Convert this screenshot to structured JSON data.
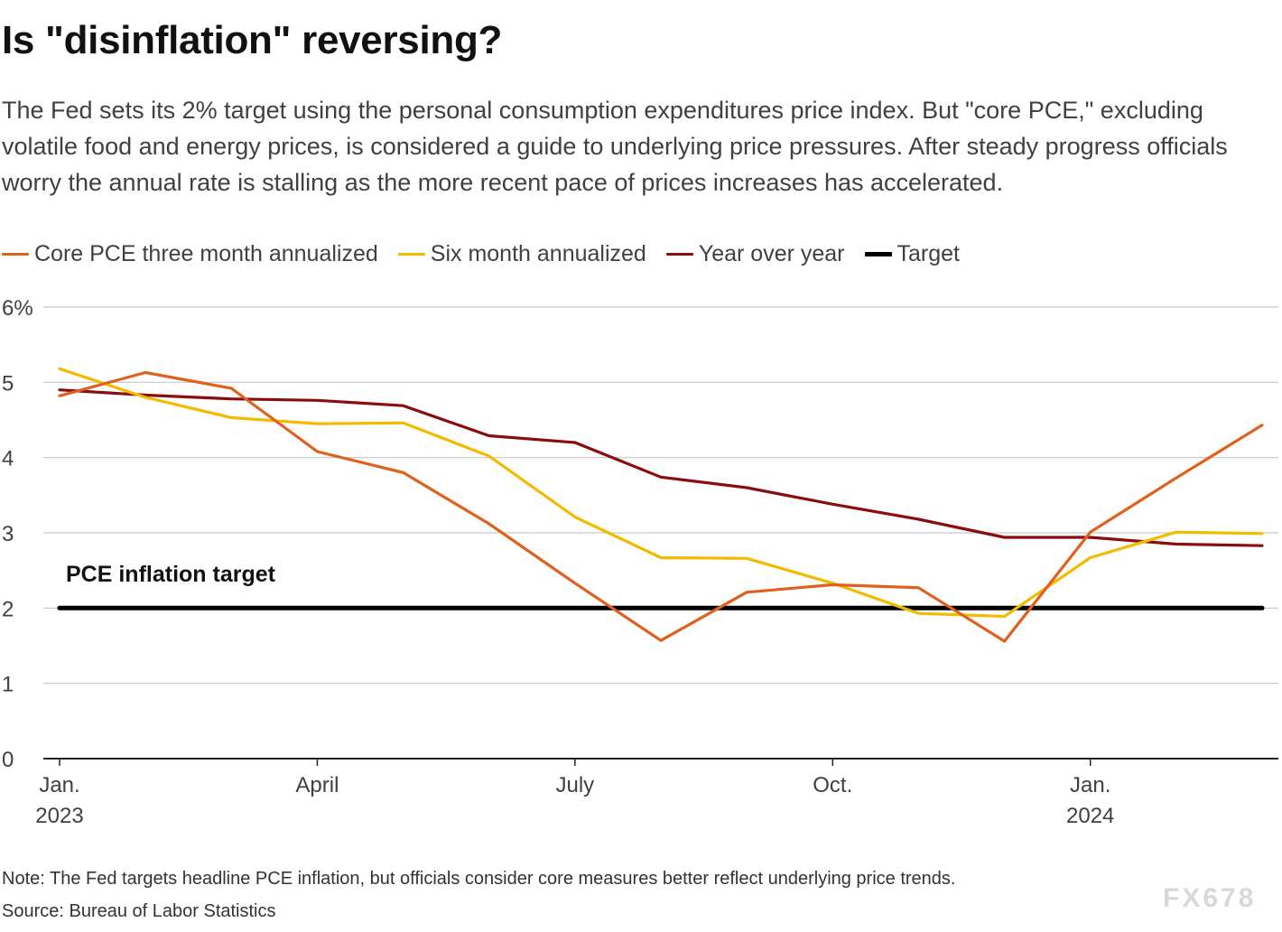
{
  "header": {
    "title": "Is \"disinflation\" reversing?",
    "subtitle": "The Fed sets its 2% target using the personal consumption expenditures price index. But \"core PCE,\" excluding volatile food and energy prices, is considered a guide to underlying price pressures. After steady progress officials worry the annual rate is stalling as the more recent pace of prices increases has accelerated."
  },
  "legend": [
    {
      "label": "Core PCE three month annualized",
      "color": "#e0601e"
    },
    {
      "label": "Six month annualized",
      "color": "#f2bb00"
    },
    {
      "label": "Year over year",
      "color": "#8a0d0d"
    },
    {
      "label": "Target",
      "color": "#000000"
    }
  ],
  "chart_data": {
    "type": "line",
    "ylim": [
      0,
      6
    ],
    "y_ticks": [
      {
        "value": 0,
        "label": "0"
      },
      {
        "value": 1,
        "label": "1"
      },
      {
        "value": 2,
        "label": "2"
      },
      {
        "value": 3,
        "label": "3"
      },
      {
        "value": 4,
        "label": "4"
      },
      {
        "value": 5,
        "label": "5"
      },
      {
        "value": 6,
        "label": "6%"
      }
    ],
    "x": [
      "2023-01",
      "2023-02",
      "2023-03",
      "2023-04",
      "2023-05",
      "2023-06",
      "2023-07",
      "2023-08",
      "2023-09",
      "2023-10",
      "2023-11",
      "2023-12",
      "2024-01",
      "2024-02",
      "2024-03"
    ],
    "x_ticks": [
      {
        "x": "2023-01",
        "line1": "Jan.",
        "line2": "2023"
      },
      {
        "x": "2023-04",
        "line1": "April",
        "line2": ""
      },
      {
        "x": "2023-07",
        "line1": "July",
        "line2": ""
      },
      {
        "x": "2023-10",
        "line1": "Oct.",
        "line2": ""
      },
      {
        "x": "2024-01",
        "line1": "Jan.",
        "line2": "2024"
      }
    ],
    "series": [
      {
        "name": "Core PCE three month annualized",
        "color": "#e0601e",
        "values": [
          4.82,
          5.13,
          4.92,
          4.08,
          3.8,
          3.12,
          2.33,
          1.57,
          2.21,
          2.31,
          2.27,
          1.56,
          3.01,
          3.73,
          4.43
        ]
      },
      {
        "name": "Six month annualized",
        "color": "#f2bb00",
        "values": [
          5.18,
          4.8,
          4.53,
          4.45,
          4.46,
          4.02,
          3.21,
          2.67,
          2.66,
          2.33,
          1.93,
          1.89,
          2.67,
          3.01,
          2.99
        ]
      },
      {
        "name": "Year over year",
        "color": "#8a0d0d",
        "values": [
          4.9,
          4.83,
          4.78,
          4.76,
          4.69,
          4.29,
          4.2,
          3.74,
          3.6,
          3.38,
          3.18,
          2.94,
          2.94,
          2.85,
          2.83
        ]
      },
      {
        "name": "Target",
        "color": "#000000",
        "values": [
          2,
          2,
          2,
          2,
          2,
          2,
          2,
          2,
          2,
          2,
          2,
          2,
          2,
          2,
          2
        ]
      }
    ],
    "annotations": [
      {
        "text": "PCE inflation target",
        "x": "2023-01",
        "y": 2.45
      }
    ],
    "grid": true
  },
  "footer": {
    "note": "Note: The Fed targets headline PCE inflation, but officials consider core measures better reflect underlying price trends.",
    "source": "Source: Bureau of Labor Statistics",
    "watermark": "FX678"
  }
}
